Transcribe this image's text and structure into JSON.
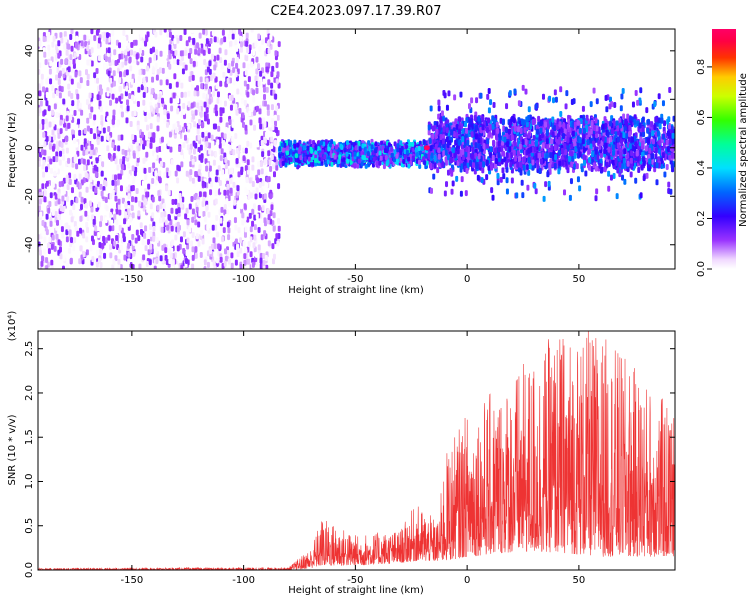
{
  "figure": {
    "title": "C2E4.2023.097.17.39.R07"
  },
  "chart_data": [
    {
      "type": "heatmap",
      "title": "C2E4.2023.097.17.39.R07",
      "xlabel": "Height of straight line (km)",
      "ylabel": "Frequency (Hz)",
      "xlim": [
        -192,
        93
      ],
      "ylim": [
        -50,
        49
      ],
      "xticks": [
        -150,
        -100,
        -50,
        0,
        50
      ],
      "yticks": [
        -40,
        -20,
        0,
        20,
        40
      ],
      "grid": false,
      "colorbar": {
        "label": "Normalized spectral amplitude",
        "range": [
          0.0,
          0.95
        ],
        "ticks": [
          0.0,
          0.2,
          0.4,
          0.6,
          0.8
        ],
        "colormap": "rainbow (white-violet-blue-cyan-green-yellow-red-magenta)"
      },
      "regions": [
        {
          "x": [
            -192,
            -84
          ],
          "description_values": {
            "freq_range": [
              -50,
              49
            ],
            "amplitude": [
              0.0,
              0.15
            ]
          }
        },
        {
          "x": [
            -84,
            -17
          ],
          "description_values": {
            "freq_center": [
              -4,
              -1
            ],
            "freq_halfwidth": 4,
            "amplitude": [
              0.1,
              0.45
            ]
          }
        },
        {
          "x": [
            -17,
            93
          ],
          "description_values": {
            "freq_center": [
              0,
              3
            ],
            "freq_halfwidth": 10,
            "amplitude": [
              0.1,
              0.35
            ]
          }
        }
      ],
      "peak": {
        "x": -18,
        "y": 0,
        "amplitude": 0.95
      }
    },
    {
      "type": "line",
      "xlabel": "Height of straight line (km)",
      "ylabel": "SNR (10 * v/v)",
      "ymultiplier": "(x10⁴)",
      "xlim": [
        -192,
        93
      ],
      "ylim": [
        0.0,
        2.7
      ],
      "xticks": [
        -150,
        -100,
        -50,
        0,
        50
      ],
      "yticks": [
        0.0,
        0.5,
        1.0,
        1.5,
        2.0,
        2.5
      ],
      "ytick_labels": [
        "0.0",
        "0.5",
        "1.0",
        "1.5",
        "2.0",
        "2.5"
      ],
      "series_color": "#ee3333",
      "series": [
        {
          "envelope": [
            {
              "x": -192,
              "low": 0.0,
              "high": 0.02
            },
            {
              "x": -80,
              "low": 0.0,
              "high": 0.03
            },
            {
              "x": -70,
              "low": 0.02,
              "high": 0.25
            },
            {
              "x": -65,
              "low": 0.05,
              "high": 0.6
            },
            {
              "x": -50,
              "low": 0.05,
              "high": 0.4
            },
            {
              "x": -30,
              "low": 0.08,
              "high": 0.45
            },
            {
              "x": -23,
              "low": 0.1,
              "high": 0.75
            },
            {
              "x": -13,
              "low": 0.1,
              "high": 0.55
            },
            {
              "x": -10,
              "low": 0.1,
              "high": 1.3
            },
            {
              "x": 0,
              "low": 0.15,
              "high": 1.8
            },
            {
              "x": 20,
              "low": 0.2,
              "high": 2.2
            },
            {
              "x": 40,
              "low": 0.2,
              "high": 2.7
            },
            {
              "x": 60,
              "low": 0.15,
              "high": 2.7
            },
            {
              "x": 93,
              "low": 0.15,
              "high": 1.8
            }
          ]
        }
      ]
    }
  ]
}
